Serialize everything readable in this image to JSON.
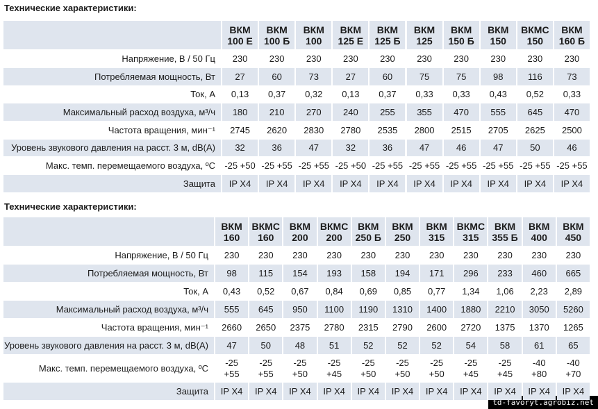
{
  "tables": [
    {
      "title": "Технические характеристики:",
      "columns": [
        [
          "ВКМ",
          "100 Е"
        ],
        [
          "ВКМ",
          "100 Б"
        ],
        [
          "ВКМ",
          "100"
        ],
        [
          "ВКМ",
          "125 Е"
        ],
        [
          "ВКМ",
          "125 Б"
        ],
        [
          "ВКМ",
          "125"
        ],
        [
          "ВКМ",
          "150 Б"
        ],
        [
          "ВКМ",
          "150"
        ],
        [
          "ВКМС",
          "150"
        ],
        [
          "ВКМ",
          "160 Б"
        ]
      ],
      "rows": [
        {
          "label": "Напряжение, В / 50 Гц",
          "values": [
            230,
            230,
            230,
            230,
            230,
            230,
            230,
            230,
            230,
            230
          ]
        },
        {
          "label": "Потребляемая мощность, Вт",
          "values": [
            27,
            60,
            73,
            27,
            60,
            75,
            75,
            98,
            116,
            73
          ]
        },
        {
          "label": "Ток, А",
          "values": [
            "0,13",
            "0,37",
            "0,32",
            "0,13",
            "0,37",
            "0,33",
            "0,33",
            "0,43",
            "0,52",
            "0,33"
          ]
        },
        {
          "label": "Максимальный расход воздуха, м³/ч",
          "values": [
            180,
            210,
            270,
            240,
            255,
            355,
            470,
            555,
            645,
            470
          ]
        },
        {
          "label": "Частота вращения,  мин⁻¹",
          "values": [
            2745,
            2620,
            2830,
            2780,
            2535,
            2800,
            2515,
            2705,
            2625,
            2500
          ]
        },
        {
          "label": "Уровень звукового давления на расст. 3 м, dB(A)",
          "values": [
            32,
            36,
            47,
            32,
            36,
            47,
            46,
            47,
            50,
            46
          ]
        },
        {
          "label": "Макс. темп. перемещаемого воздуха, ºC",
          "values": [
            "-25 +50",
            "-25 +55",
            "-25 +55",
            "-25 +50",
            "-25 +55",
            "-25 +55",
            "-25 +55",
            "-25 +55",
            "-25 +55",
            "-25 +55"
          ]
        },
        {
          "label": "Защита",
          "values": [
            "IP X4",
            "IP X4",
            "IP X4",
            "IP X4",
            "IP X4",
            "IP X4",
            "IP X4",
            "IP X4",
            "IP X4",
            "IP X4"
          ]
        }
      ]
    },
    {
      "title": "Технические характеристики:",
      "columns": [
        [
          "ВКМ",
          "160"
        ],
        [
          "ВКМС",
          "160"
        ],
        [
          "ВКМ",
          "200"
        ],
        [
          "ВКМС",
          "200"
        ],
        [
          "ВКМ",
          "250 Б"
        ],
        [
          "ВКМ",
          "250"
        ],
        [
          "ВКМ",
          "315"
        ],
        [
          "ВКМС",
          "315"
        ],
        [
          "ВКМ",
          "355 Б"
        ],
        [
          "ВКМ",
          "400"
        ],
        [
          "ВКМ",
          "450"
        ]
      ],
      "rows": [
        {
          "label": "Напряжение, В / 50 Гц",
          "values": [
            230,
            230,
            230,
            230,
            230,
            230,
            230,
            230,
            230,
            230,
            230
          ]
        },
        {
          "label": "Потребляемая мощность, Вт",
          "values": [
            98,
            115,
            154,
            193,
            158,
            194,
            171,
            296,
            233,
            460,
            665
          ]
        },
        {
          "label": "Ток, А",
          "values": [
            "0,43",
            "0,52",
            "0,67",
            "0,84",
            "0,69",
            "0,85",
            "0,77",
            "1,34",
            "1,06",
            "2,23",
            "2,89"
          ]
        },
        {
          "label": "Максимальный расход воздуха, м³/ч",
          "values": [
            555,
            645,
            950,
            1100,
            1190,
            1310,
            1400,
            1880,
            2210,
            3050,
            5260
          ]
        },
        {
          "label": "Частота вращения,  мин⁻¹",
          "values": [
            2660,
            2650,
            2375,
            2780,
            2315,
            2790,
            2600,
            2720,
            1375,
            1370,
            1265
          ]
        },
        {
          "label": "Уровень звукового давления на расст. 3 м, dB(A)",
          "values": [
            47,
            50,
            48,
            51,
            52,
            52,
            52,
            54,
            58,
            61,
            65
          ]
        },
        {
          "label": "Макс. темп. перемещаемого воздуха, ºC",
          "values": [
            [
              "-25",
              "+55"
            ],
            [
              "-25",
              "+55"
            ],
            [
              "-25",
              "+50"
            ],
            [
              "-25",
              "+45"
            ],
            [
              "-25",
              "+50"
            ],
            [
              "-25",
              "+50"
            ],
            [
              "-25",
              "+50"
            ],
            [
              "-25",
              "+45"
            ],
            [
              "-25",
              "+45"
            ],
            [
              "-40",
              "+80"
            ],
            [
              "-40",
              "+70"
            ]
          ]
        },
        {
          "label": "Защита",
          "values": [
            "IP X4",
            "IP X4",
            "IP X4",
            "IP X4",
            "IP X4",
            "IP X4",
            "IP X4",
            "IP X4",
            "IP X4",
            "IP X4",
            "IP X4"
          ]
        }
      ]
    }
  ],
  "watermark": "td-favoryt.agrobiz.net"
}
